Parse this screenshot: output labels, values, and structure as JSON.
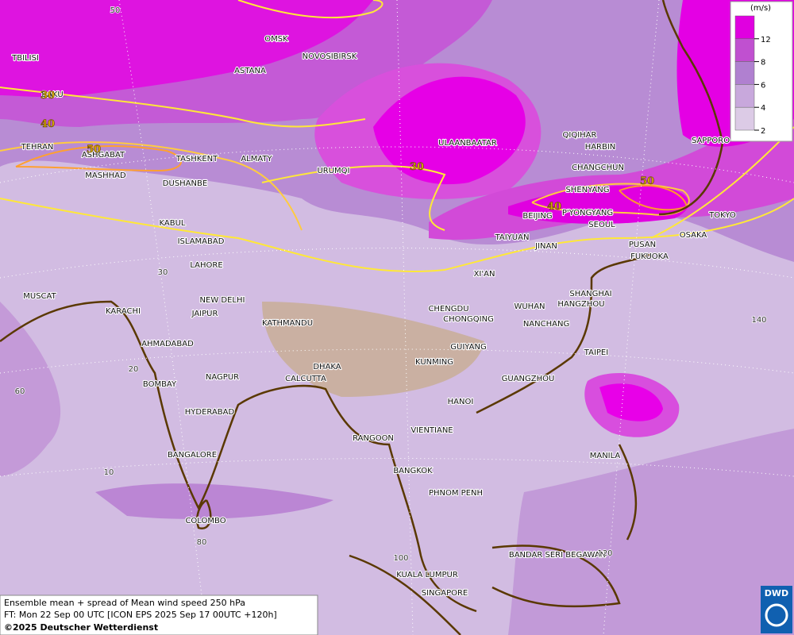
{
  "map": {
    "cities": [
      "TBILISI",
      "BAKU",
      "OMSK",
      "ASTANA",
      "NOVOSIBIRSK",
      "TEHRAN",
      "ASHGABAT",
      "TASHKENT",
      "ALMATY",
      "URUMQI",
      "ULAANBAATAR",
      "QIQIHAR",
      "HARBIN",
      "SAPPORO",
      "CHANGCHUN",
      "SHENYANG",
      "MASHHAD",
      "DUSHANBE",
      "KABUL",
      "BEIJING",
      "P'YONGYANG",
      "SEOUL",
      "TOKYO",
      "OSAKA",
      "TAIYUAN",
      "JINAN",
      "PUSAN",
      "FUKUOKA",
      "ISLAMABAD",
      "LAHORE",
      "XI'AN",
      "SHANGHAI",
      "HANGZHOU",
      "MUSCAT",
      "NEW DELHI",
      "CHENGDU",
      "WUHAN",
      "KARACHI",
      "JAIPUR",
      "CHONGQING",
      "NANCHANG",
      "KATHMANDU",
      "AHMADABAD",
      "GUIYANG",
      "TAIPEI",
      "KUNMING",
      "DHAKA",
      "NAGPUR",
      "CALCUTTA",
      "GUANGZHOU",
      "BOMBAY",
      "HANOI",
      "HYDERABAD",
      "RANGOON",
      "VIENTIANE",
      "BANGALORE",
      "MANILA",
      "BANGKOK",
      "PHNOM PENH",
      "COLOMBO",
      "BANDAR SERI BEGAWAN",
      "KUALA LUMPUR",
      "SINGAPORE"
    ],
    "contour_labels": [
      30,
      40,
      50,
      30,
      40,
      50
    ],
    "graticule_labels": [
      50,
      30,
      20,
      10,
      60,
      80,
      100,
      120,
      140
    ]
  },
  "legend": {
    "unit": "(m/s)",
    "levels": [
      12,
      8,
      6,
      4,
      2
    ],
    "colors": [
      "#e000e0",
      "#c050d0",
      "#b080d0",
      "#c8a8dc",
      "#dccbe6"
    ]
  },
  "caption": {
    "line1": "Ensemble mean + spread of Mean wind speed 250 hPa",
    "line2": "FT: Mon 22 Sep 00 UTC [ICON EPS 2025 Sep 17 00UTC +120h]",
    "copyright": "©2025 Deutscher Wetterdienst"
  },
  "logo": "DWD"
}
